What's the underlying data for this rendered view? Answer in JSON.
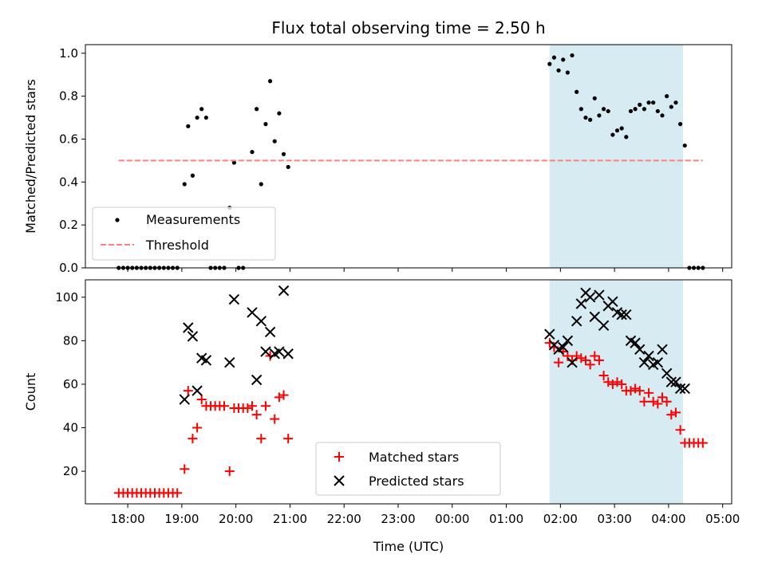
{
  "chart_data": [
    {
      "type": "scatter",
      "title": "Flux total observing time = 2.50 h",
      "xlabel": "",
      "ylabel": "Matched/Predicted stars",
      "xlim": [
        "17:13",
        "05:10"
      ],
      "ylim": [
        0,
        1.04
      ],
      "yticks": [
        "0.0",
        "0.2",
        "0.4",
        "0.6",
        "0.8",
        "1.0"
      ],
      "shaded_interval": [
        "01:48",
        "04:16"
      ],
      "shade_color": "#add8e6",
      "series": [
        {
          "name": "Measurements",
          "marker": "dot",
          "color": "#000000",
          "points": [
            [
              "17:50",
              0
            ],
            [
              "17:55",
              0
            ],
            [
              "18:00",
              0
            ],
            [
              "18:05",
              0
            ],
            [
              "18:10",
              0
            ],
            [
              "18:15",
              0
            ],
            [
              "18:20",
              0
            ],
            [
              "18:25",
              0
            ],
            [
              "18:30",
              0
            ],
            [
              "18:35",
              0
            ],
            [
              "18:40",
              0
            ],
            [
              "18:45",
              0
            ],
            [
              "18:50",
              0
            ],
            [
              "18:55",
              0
            ],
            [
              "19:03",
              0.39
            ],
            [
              "19:07",
              0.66
            ],
            [
              "19:12",
              0.43
            ],
            [
              "19:17",
              0.7
            ],
            [
              "19:22",
              0.74
            ],
            [
              "19:27",
              0.7
            ],
            [
              "19:32",
              0
            ],
            [
              "19:37",
              0
            ],
            [
              "19:42",
              0
            ],
            [
              "19:47",
              0
            ],
            [
              "19:53",
              0.28
            ],
            [
              "19:58",
              0.49
            ],
            [
              "20:03",
              0
            ],
            [
              "20:08",
              0
            ],
            [
              "20:18",
              0.54
            ],
            [
              "20:23",
              0.74
            ],
            [
              "20:28",
              0.39
            ],
            [
              "20:33",
              0.67
            ],
            [
              "20:38",
              0.87
            ],
            [
              "20:43",
              0.59
            ],
            [
              "20:48",
              0.72
            ],
            [
              "20:53",
              0.53
            ],
            [
              "20:58",
              0.47
            ],
            [
              "01:48",
              0.95
            ],
            [
              "01:53",
              0.98
            ],
            [
              "01:58",
              0.92
            ],
            [
              "02:03",
              0.97
            ],
            [
              "02:08",
              0.91
            ],
            [
              "02:13",
              0.99
            ],
            [
              "02:18",
              0.82
            ],
            [
              "02:23",
              0.74
            ],
            [
              "02:28",
              0.7
            ],
            [
              "02:33",
              0.69
            ],
            [
              "02:38",
              0.79
            ],
            [
              "02:43",
              0.71
            ],
            [
              "02:48",
              0.74
            ],
            [
              "02:53",
              0.73
            ],
            [
              "02:58",
              0.62
            ],
            [
              "03:03",
              0.64
            ],
            [
              "03:08",
              0.65
            ],
            [
              "03:13",
              0.61
            ],
            [
              "03:18",
              0.73
            ],
            [
              "03:23",
              0.74
            ],
            [
              "03:28",
              0.76
            ],
            [
              "03:33",
              0.74
            ],
            [
              "03:38",
              0.77
            ],
            [
              "03:43",
              0.77
            ],
            [
              "03:48",
              0.73
            ],
            [
              "03:53",
              0.71
            ],
            [
              "03:58",
              0.8
            ],
            [
              "04:03",
              0.75
            ],
            [
              "04:08",
              0.77
            ],
            [
              "04:13",
              0.67
            ],
            [
              "04:18",
              0.57
            ],
            [
              "04:23",
              0
            ],
            [
              "04:28",
              0
            ],
            [
              "04:33",
              0
            ],
            [
              "04:38",
              0
            ]
          ]
        },
        {
          "name": "Threshold",
          "marker": "dashed-line",
          "color": "#ff7f7f",
          "points": [
            [
              "17:50",
              0.5
            ],
            [
              "04:38",
              0.5
            ]
          ]
        }
      ],
      "legend": "lower-left"
    },
    {
      "type": "scatter",
      "title": "",
      "xlabel": "Time (UTC)",
      "ylabel": "Count",
      "xlim": [
        "17:13",
        "05:10"
      ],
      "ylim": [
        5,
        108
      ],
      "xticks": [
        "18:00",
        "19:00",
        "20:00",
        "21:00",
        "22:00",
        "23:00",
        "00:00",
        "01:00",
        "02:00",
        "03:00",
        "04:00",
        "05:00"
      ],
      "yticks": [
        "20",
        "40",
        "60",
        "80",
        "100"
      ],
      "shaded_interval": [
        "01:48",
        "04:16"
      ],
      "shade_color": "#add8e6",
      "series": [
        {
          "name": "Matched stars",
          "marker": "plus",
          "color": "#ff0000",
          "points": [
            [
              "17:50",
              10
            ],
            [
              "17:55",
              10
            ],
            [
              "18:00",
              10
            ],
            [
              "18:05",
              10
            ],
            [
              "18:10",
              10
            ],
            [
              "18:15",
              10
            ],
            [
              "18:20",
              10
            ],
            [
              "18:25",
              10
            ],
            [
              "18:30",
              10
            ],
            [
              "18:35",
              10
            ],
            [
              "18:40",
              10
            ],
            [
              "18:45",
              10
            ],
            [
              "18:50",
              10
            ],
            [
              "18:55",
              10
            ],
            [
              "19:03",
              21
            ],
            [
              "19:07",
              57
            ],
            [
              "19:12",
              35
            ],
            [
              "19:17",
              40
            ],
            [
              "19:22",
              53
            ],
            [
              "19:27",
              50
            ],
            [
              "19:32",
              50
            ],
            [
              "19:37",
              50
            ],
            [
              "19:42",
              50
            ],
            [
              "19:47",
              50
            ],
            [
              "19:53",
              20
            ],
            [
              "19:58",
              49
            ],
            [
              "20:03",
              49
            ],
            [
              "20:08",
              49
            ],
            [
              "20:13",
              49
            ],
            [
              "20:18",
              50
            ],
            [
              "20:23",
              46
            ],
            [
              "20:28",
              35
            ],
            [
              "20:33",
              50
            ],
            [
              "20:38",
              73
            ],
            [
              "20:43",
              44
            ],
            [
              "20:48",
              54
            ],
            [
              "20:53",
              55
            ],
            [
              "20:58",
              35
            ],
            [
              "01:48",
              79
            ],
            [
              "01:53",
              77
            ],
            [
              "01:58",
              70
            ],
            [
              "02:03",
              75
            ],
            [
              "02:08",
              73
            ],
            [
              "02:13",
              71
            ],
            [
              "02:18",
              73
            ],
            [
              "02:23",
              72
            ],
            [
              "02:28",
              71
            ],
            [
              "02:33",
              69
            ],
            [
              "02:38",
              73
            ],
            [
              "02:43",
              71
            ],
            [
              "02:48",
              64
            ],
            [
              "02:53",
              61
            ],
            [
              "02:58",
              60
            ],
            [
              "03:03",
              61
            ],
            [
              "03:08",
              60
            ],
            [
              "03:13",
              57
            ],
            [
              "03:18",
              57
            ],
            [
              "03:23",
              58
            ],
            [
              "03:28",
              57
            ],
            [
              "03:33",
              52
            ],
            [
              "03:38",
              56
            ],
            [
              "03:43",
              52
            ],
            [
              "03:48",
              51
            ],
            [
              "03:53",
              54
            ],
            [
              "03:58",
              52
            ],
            [
              "04:03",
              46
            ],
            [
              "04:08",
              47
            ],
            [
              "04:13",
              39
            ],
            [
              "04:18",
              33
            ],
            [
              "04:23",
              33
            ],
            [
              "04:28",
              33
            ],
            [
              "04:33",
              33
            ],
            [
              "04:38",
              33
            ]
          ]
        },
        {
          "name": "Predicted stars",
          "marker": "x",
          "color": "#000000",
          "points": [
            [
              "19:03",
              53
            ],
            [
              "19:07",
              86
            ],
            [
              "19:12",
              82
            ],
            [
              "19:17",
              57
            ],
            [
              "19:22",
              72
            ],
            [
              "19:27",
              71
            ],
            [
              "19:53",
              70
            ],
            [
              "19:58",
              99
            ],
            [
              "20:18",
              93
            ],
            [
              "20:23",
              62
            ],
            [
              "20:28",
              89
            ],
            [
              "20:33",
              75
            ],
            [
              "20:38",
              84
            ],
            [
              "20:43",
              74
            ],
            [
              "20:48",
              75
            ],
            [
              "20:58",
              74
            ],
            [
              "20:53",
              103
            ],
            [
              "01:48",
              83
            ],
            [
              "01:53",
              78
            ],
            [
              "01:58",
              76
            ],
            [
              "02:03",
              77
            ],
            [
              "02:08",
              80
            ],
            [
              "02:13",
              70
            ],
            [
              "02:18",
              89
            ],
            [
              "02:23",
              97
            ],
            [
              "02:28",
              102
            ],
            [
              "02:33",
              100
            ],
            [
              "02:38",
              91
            ],
            [
              "02:43",
              101
            ],
            [
              "02:48",
              87
            ],
            [
              "02:53",
              96
            ],
            [
              "02:58",
              98
            ],
            [
              "03:03",
              93
            ],
            [
              "03:08",
              92
            ],
            [
              "03:13",
              92
            ],
            [
              "03:18",
              80
            ],
            [
              "03:23",
              79
            ],
            [
              "03:28",
              76
            ],
            [
              "03:33",
              70
            ],
            [
              "03:38",
              73
            ],
            [
              "03:43",
              69
            ],
            [
              "03:48",
              70
            ],
            [
              "03:53",
              76
            ],
            [
              "03:58",
              65
            ],
            [
              "04:03",
              61
            ],
            [
              "04:08",
              61
            ],
            [
              "04:13",
              58
            ],
            [
              "04:18",
              58
            ]
          ]
        }
      ],
      "legend": "lower-center"
    }
  ]
}
